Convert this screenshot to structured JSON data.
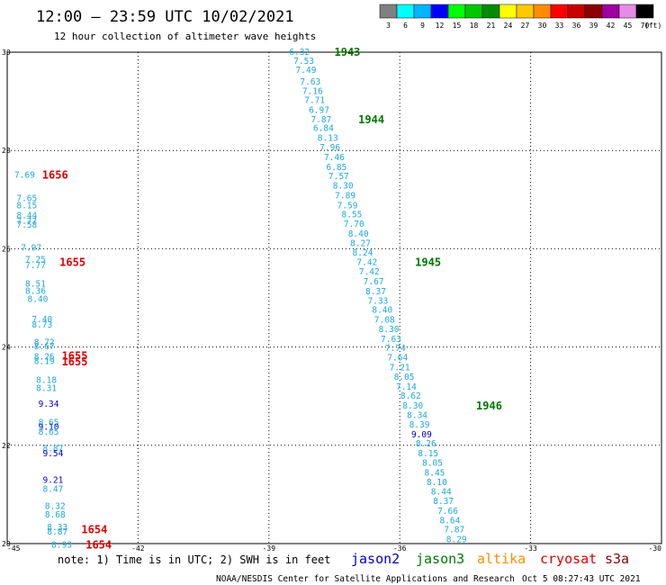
{
  "header": {
    "title": "12:00 – 23:59 UTC 10/02/2021",
    "subtitle": "12 hour collection of altimeter wave heights"
  },
  "legend": {
    "unit": "(ft)",
    "bins": [
      {
        "label": "3",
        "color": "#808080"
      },
      {
        "label": "6",
        "color": "#00ffff"
      },
      {
        "label": "9",
        "color": "#00b4ff"
      },
      {
        "label": "12",
        "color": "#0000ff"
      },
      {
        "label": "15",
        "color": "#00ff00"
      },
      {
        "label": "18",
        "color": "#00c800"
      },
      {
        "label": "21",
        "color": "#008c00"
      },
      {
        "label": "24",
        "color": "#ffff00"
      },
      {
        "label": "27",
        "color": "#ffc800"
      },
      {
        "label": "30",
        "color": "#ff8c00"
      },
      {
        "label": "33",
        "color": "#ff0000"
      },
      {
        "label": "36",
        "color": "#c80000"
      },
      {
        "label": "39",
        "color": "#8c0000"
      },
      {
        "label": "42",
        "color": "#a000a0"
      },
      {
        "label": "45",
        "color": "#e68ce6"
      },
      {
        "label": "70",
        "color": "#000000"
      }
    ]
  },
  "footer": {
    "note": "note: 1) Time is in UTC; 2) SWH is in feet",
    "satellites": [
      {
        "name": "jason2",
        "color": "#0000cc"
      },
      {
        "name": "jason3",
        "color": "#007800"
      },
      {
        "name": "altika",
        "color": "#ff8c00"
      },
      {
        "name": "cryosat",
        "color": "#dd0000"
      },
      {
        "name": "s3a",
        "color": "#8c0000"
      }
    ],
    "credit": "NOAA/NESDIS Center for Satellite Applications and Research",
    "timestamp": "Oct  5 08:27:43 UTC 2021"
  },
  "chart_data": {
    "type": "scatter",
    "xlim": [
      -45,
      -30
    ],
    "ylim": [
      20,
      30
    ],
    "x_ticks": [
      "-45",
      "-42",
      "-39",
      "-36",
      "-33",
      "-30"
    ],
    "y_ticks": [
      "20",
      "22",
      "24",
      "26",
      "28",
      "30"
    ],
    "grid": true,
    "point_colors": {
      "cyan": "#1ea8dc",
      "blue": "#0000cc"
    },
    "series": [
      {
        "satellite": "jason3",
        "label_color": "#007800",
        "points": [
          {
            "lon": -38.3,
            "lat": 30.0,
            "swh": "6.32",
            "c": "cyan"
          },
          {
            "lon": -38.2,
            "lat": 29.82,
            "swh": "7.53",
            "c": "cyan"
          },
          {
            "lon": -38.15,
            "lat": 29.63,
            "swh": "7.49",
            "c": "cyan"
          },
          {
            "lon": -38.05,
            "lat": 29.4,
            "swh": "7.63",
            "c": "cyan"
          },
          {
            "lon": -38.0,
            "lat": 29.2,
            "swh": "7.16",
            "c": "cyan"
          },
          {
            "lon": -37.95,
            "lat": 29.02,
            "swh": "7.71",
            "c": "cyan"
          },
          {
            "lon": -37.85,
            "lat": 28.82,
            "swh": "6.97",
            "c": "cyan"
          },
          {
            "lon": -37.8,
            "lat": 28.63,
            "swh": "7.87",
            "c": "cyan"
          },
          {
            "lon": -37.75,
            "lat": 28.45,
            "swh": "6.84",
            "c": "cyan"
          },
          {
            "lon": -37.65,
            "lat": 28.25,
            "swh": "8.13",
            "c": "cyan"
          },
          {
            "lon": -37.6,
            "lat": 28.06,
            "swh": "7.96",
            "c": "cyan"
          },
          {
            "lon": -37.5,
            "lat": 27.86,
            "swh": "7.46",
            "c": "cyan"
          },
          {
            "lon": -37.45,
            "lat": 27.66,
            "swh": "6.85",
            "c": "cyan"
          },
          {
            "lon": -37.4,
            "lat": 27.47,
            "swh": "7.57",
            "c": "cyan"
          },
          {
            "lon": -37.3,
            "lat": 27.28,
            "swh": "8.30",
            "c": "cyan"
          },
          {
            "lon": -37.25,
            "lat": 27.08,
            "swh": "7.89",
            "c": "cyan"
          },
          {
            "lon": -37.2,
            "lat": 26.88,
            "swh": "7.59",
            "c": "cyan"
          },
          {
            "lon": -37.1,
            "lat": 26.69,
            "swh": "8.55",
            "c": "cyan"
          },
          {
            "lon": -37.05,
            "lat": 26.5,
            "swh": "7.70",
            "c": "cyan"
          },
          {
            "lon": -36.95,
            "lat": 26.3,
            "swh": "8.40",
            "c": "cyan"
          },
          {
            "lon": -36.9,
            "lat": 26.11,
            "swh": "8.27",
            "c": "cyan"
          },
          {
            "lon": -36.85,
            "lat": 25.92,
            "swh": "8.24",
            "c": "cyan"
          },
          {
            "lon": -36.75,
            "lat": 25.72,
            "swh": "7.42",
            "c": "cyan"
          },
          {
            "lon": -36.7,
            "lat": 25.53,
            "swh": "7.42",
            "c": "cyan"
          },
          {
            "lon": -36.6,
            "lat": 25.33,
            "swh": "7.67",
            "c": "cyan"
          },
          {
            "lon": -36.55,
            "lat": 25.13,
            "swh": "8.37",
            "c": "cyan"
          },
          {
            "lon": -36.5,
            "lat": 24.94,
            "swh": "7.33",
            "c": "cyan"
          },
          {
            "lon": -36.4,
            "lat": 24.75,
            "swh": "8.40",
            "c": "cyan"
          },
          {
            "lon": -36.35,
            "lat": 24.55,
            "swh": "7.08",
            "c": "cyan"
          },
          {
            "lon": -36.25,
            "lat": 24.36,
            "swh": "8.30",
            "c": "cyan"
          },
          {
            "lon": -36.2,
            "lat": 24.16,
            "swh": "7.63",
            "c": "cyan"
          },
          {
            "lon": -36.1,
            "lat": 23.97,
            "swh": "7.74",
            "c": "cyan"
          },
          {
            "lon": -36.05,
            "lat": 23.78,
            "swh": "7.64",
            "c": "cyan"
          },
          {
            "lon": -36.0,
            "lat": 23.58,
            "swh": "7.21",
            "c": "cyan"
          },
          {
            "lon": -35.9,
            "lat": 23.39,
            "swh": "8.05",
            "c": "cyan"
          },
          {
            "lon": -35.85,
            "lat": 23.19,
            "swh": "7.14",
            "c": "cyan"
          },
          {
            "lon": -35.75,
            "lat": 23.0,
            "swh": "8.62",
            "c": "cyan"
          },
          {
            "lon": -35.7,
            "lat": 22.8,
            "swh": "8.30",
            "c": "cyan"
          },
          {
            "lon": -35.6,
            "lat": 22.61,
            "swh": "8.34",
            "c": "cyan"
          },
          {
            "lon": -35.55,
            "lat": 22.42,
            "swh": "8.39",
            "c": "cyan"
          },
          {
            "lon": -35.5,
            "lat": 22.22,
            "swh": "9.09",
            "c": "blue"
          },
          {
            "lon": -35.4,
            "lat": 22.03,
            "swh": "8.26",
            "c": "cyan"
          },
          {
            "lon": -35.35,
            "lat": 21.83,
            "swh": "8.15",
            "c": "cyan"
          },
          {
            "lon": -35.25,
            "lat": 21.64,
            "swh": "8.05",
            "c": "cyan"
          },
          {
            "lon": -35.2,
            "lat": 21.44,
            "swh": "8.45",
            "c": "cyan"
          },
          {
            "lon": -35.15,
            "lat": 21.25,
            "swh": "8.10",
            "c": "cyan"
          },
          {
            "lon": -35.05,
            "lat": 21.05,
            "swh": "8.44",
            "c": "cyan"
          },
          {
            "lon": -35.0,
            "lat": 20.86,
            "swh": "8.37",
            "c": "cyan"
          },
          {
            "lon": -34.9,
            "lat": 20.66,
            "swh": "7.66",
            "c": "cyan"
          },
          {
            "lon": -34.85,
            "lat": 20.47,
            "swh": "8.64",
            "c": "cyan"
          },
          {
            "lon": -34.75,
            "lat": 20.28,
            "swh": "7.87",
            "c": "cyan"
          },
          {
            "lon": -34.7,
            "lat": 20.08,
            "swh": "8.29",
            "c": "cyan"
          }
        ],
        "time_labels": [
          {
            "text": "1943",
            "lon": -37.5,
            "lat": 30.0
          },
          {
            "text": "1944",
            "lon": -36.95,
            "lat": 28.63
          },
          {
            "text": "1945",
            "lon": -35.65,
            "lat": 25.72
          },
          {
            "text": "1946",
            "lon": -34.25,
            "lat": 22.8
          }
        ]
      },
      {
        "satellite": "cryosat",
        "label_color": "#dd0000",
        "points": [
          {
            "lon": -44.6,
            "lat": 27.5,
            "swh": "7.69",
            "c": "cyan"
          },
          {
            "lon": -44.55,
            "lat": 27.02,
            "swh": "7.65",
            "c": "cyan"
          },
          {
            "lon": -44.55,
            "lat": 26.88,
            "swh": "8.15",
            "c": "cyan"
          },
          {
            "lon": -44.55,
            "lat": 26.68,
            "swh": "8.44",
            "c": "cyan"
          },
          {
            "lon": -44.55,
            "lat": 26.56,
            "swh": "7.77",
            "c": "cyan"
          },
          {
            "lon": -44.55,
            "lat": 26.48,
            "swh": "7.58",
            "c": "cyan"
          },
          {
            "lon": -44.45,
            "lat": 26.02,
            "swh": "7.97",
            "c": "cyan"
          },
          {
            "lon": -44.35,
            "lat": 25.78,
            "swh": "7.25",
            "c": "cyan"
          },
          {
            "lon": -44.35,
            "lat": 25.66,
            "swh": "7.77",
            "c": "cyan"
          },
          {
            "lon": -44.35,
            "lat": 25.28,
            "swh": "8.51",
            "c": "cyan"
          },
          {
            "lon": -44.35,
            "lat": 25.14,
            "swh": "8.36",
            "c": "cyan"
          },
          {
            "lon": -44.3,
            "lat": 24.97,
            "swh": "8.40",
            "c": "cyan"
          },
          {
            "lon": -44.2,
            "lat": 24.56,
            "swh": "7.40",
            "c": "cyan"
          },
          {
            "lon": -44.2,
            "lat": 24.45,
            "swh": "8.73",
            "c": "cyan"
          },
          {
            "lon": -44.15,
            "lat": 24.09,
            "swh": "8.72",
            "c": "cyan"
          },
          {
            "lon": -44.15,
            "lat": 24.01,
            "swh": "8.67",
            "c": "cyan"
          },
          {
            "lon": -44.15,
            "lat": 23.8,
            "swh": "8.26",
            "c": "cyan"
          },
          {
            "lon": -44.15,
            "lat": 23.71,
            "swh": "8.19",
            "c": "cyan"
          },
          {
            "lon": -44.1,
            "lat": 23.32,
            "swh": "8.18",
            "c": "cyan"
          },
          {
            "lon": -44.1,
            "lat": 23.16,
            "swh": "8.31",
            "c": "cyan"
          },
          {
            "lon": -44.05,
            "lat": 22.84,
            "swh": "9.34",
            "c": "blue"
          },
          {
            "lon": -44.05,
            "lat": 22.46,
            "swh": "8.65",
            "c": "cyan"
          },
          {
            "lon": -44.05,
            "lat": 22.37,
            "swh": "9.10",
            "c": "blue"
          },
          {
            "lon": -44.05,
            "lat": 22.27,
            "swh": "8.65",
            "c": "cyan"
          },
          {
            "lon": -43.95,
            "lat": 21.93,
            "swh": "8.87",
            "c": "cyan"
          },
          {
            "lon": -43.95,
            "lat": 21.83,
            "swh": "9.54",
            "c": "blue"
          },
          {
            "lon": -43.95,
            "lat": 21.29,
            "swh": "9.21",
            "c": "blue"
          },
          {
            "lon": -43.95,
            "lat": 21.11,
            "swh": "8.47",
            "c": "cyan"
          },
          {
            "lon": -43.9,
            "lat": 20.76,
            "swh": "8.32",
            "c": "cyan"
          },
          {
            "lon": -43.9,
            "lat": 20.59,
            "swh": "8.68",
            "c": "cyan"
          },
          {
            "lon": -43.85,
            "lat": 20.33,
            "swh": "8.33",
            "c": "cyan"
          },
          {
            "lon": -43.85,
            "lat": 20.24,
            "swh": "8.87",
            "c": "cyan"
          },
          {
            "lon": -43.75,
            "lat": 19.97,
            "swh": "8.93",
            "c": "cyan"
          }
        ],
        "time_labels": [
          {
            "text": "1656",
            "lon": -44.2,
            "lat": 27.5
          },
          {
            "text": "1655",
            "lon": -43.8,
            "lat": 25.72
          },
          {
            "text": "1655",
            "lon": -43.75,
            "lat": 23.82
          },
          {
            "text": "1655",
            "lon": -43.75,
            "lat": 23.7
          },
          {
            "text": "1654",
            "lon": -43.3,
            "lat": 20.28
          },
          {
            "text": "1654",
            "lon": -43.2,
            "lat": 19.97
          }
        ]
      }
    ]
  }
}
